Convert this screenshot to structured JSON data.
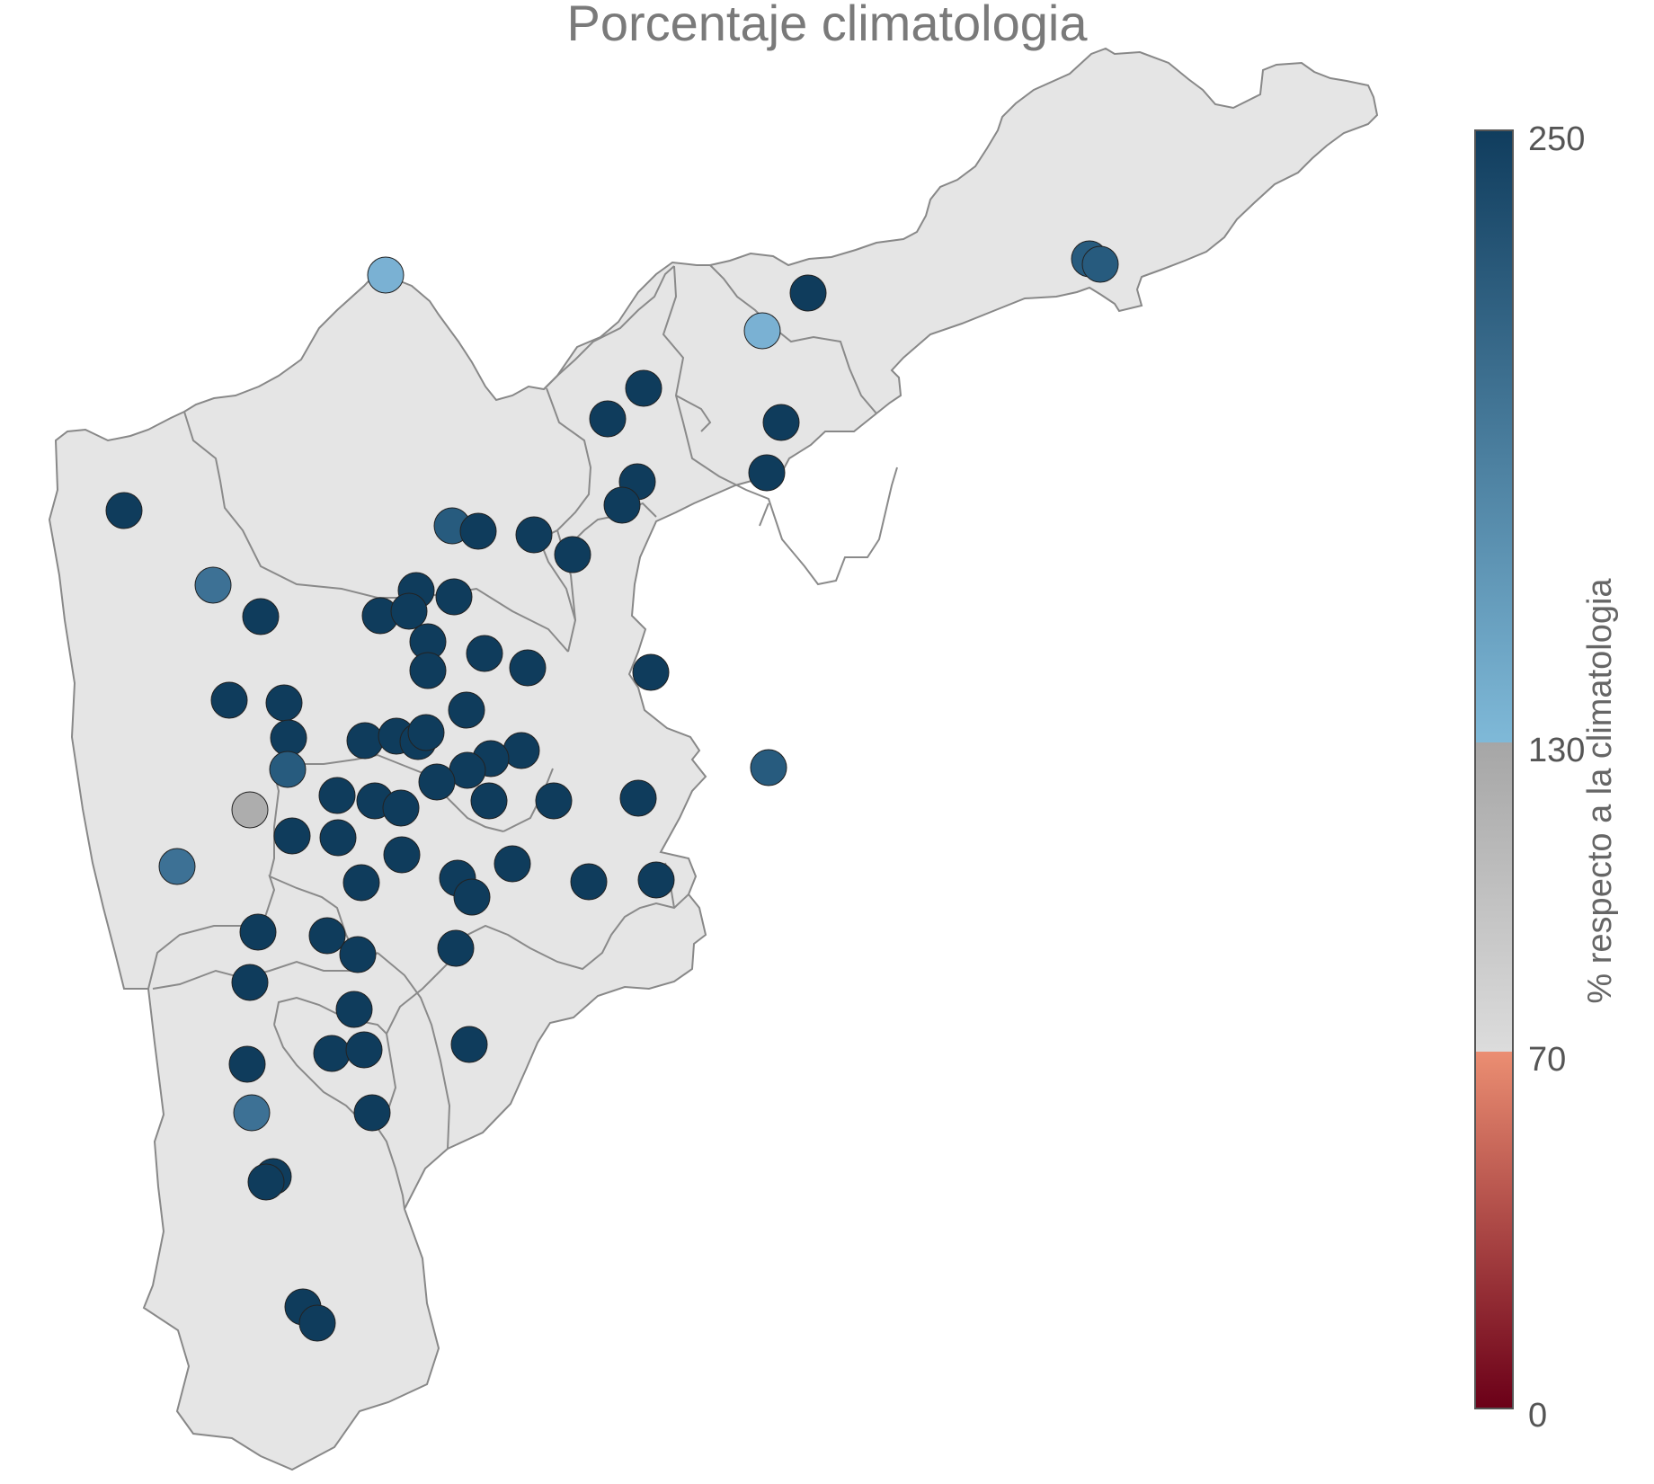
{
  "title": "Porcentaje climatologia",
  "colorbar": {
    "title": "% respecto a la climatologia",
    "ticks": [
      "250",
      "130",
      "70",
      "0"
    ],
    "segments": [
      {
        "from": 130,
        "to": 250,
        "gradient": [
          "#7fb9d8",
          "#103d5e"
        ]
      },
      {
        "from": 70,
        "to": 130,
        "gradient": [
          "#dcdcdc",
          "#a6a6a6"
        ]
      },
      {
        "from": 0,
        "to": 70,
        "gradient": [
          "#6b0018",
          "#eb8e72"
        ]
      }
    ]
  },
  "colors": {
    "region_fill": "#e5e5e5",
    "region_border": "#888888",
    "station_dark": "#0f3c5c",
    "station_mid": "#275b7e",
    "station_blue": "#3d7195",
    "station_light": "#7ab1d3",
    "station_gray": "#adadad"
  },
  "stations": [
    {
      "value": 250
    },
    {
      "value": 250
    },
    {
      "value": 250
    },
    {
      "value": 250
    },
    {
      "value": 250
    },
    {
      "value": 250
    },
    {
      "value": 250
    },
    {
      "value": 250
    },
    {
      "value": 250
    },
    {
      "value": 250
    }
  ]
}
